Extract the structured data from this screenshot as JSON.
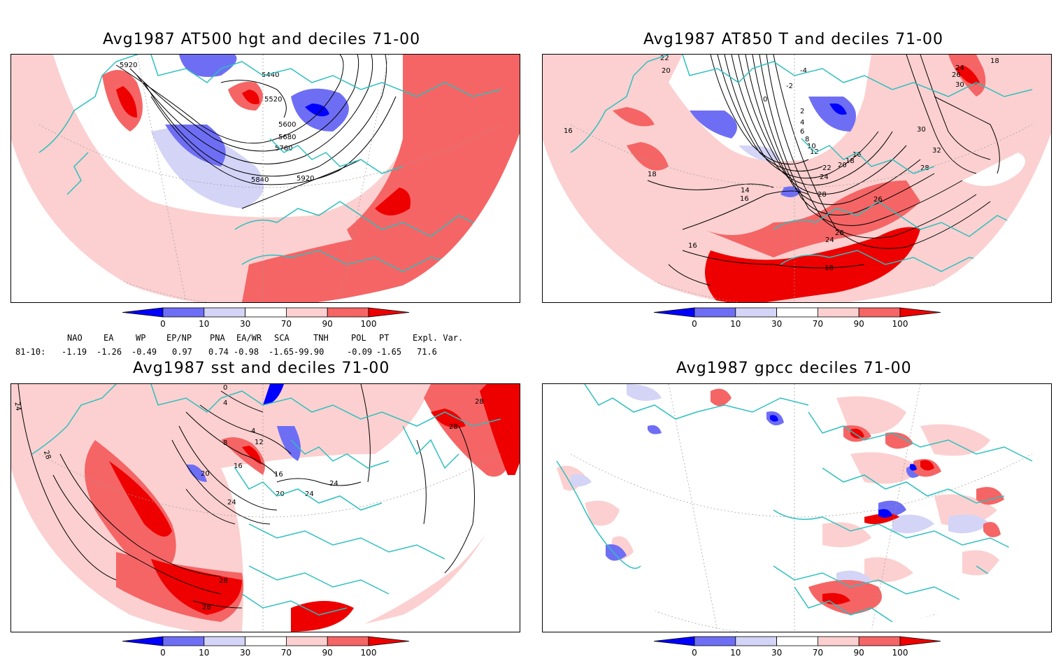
{
  "panels": [
    {
      "id": "p1",
      "title": "Avg1987 AT500 hgt and deciles 71-00",
      "contour_labels": [
        "5920",
        "5440",
        "5520",
        "5600",
        "5680",
        "5760",
        "5840",
        "5920"
      ]
    },
    {
      "id": "p2",
      "title": "Avg1987 AT850 T and deciles 71-00",
      "contour_labels": [
        "22",
        "20",
        "-4",
        "-2",
        "0",
        "2",
        "4",
        "6",
        "8",
        "10",
        "12",
        "14",
        "16",
        "16",
        "18",
        "18",
        "20",
        "22",
        "24",
        "24",
        "26",
        "26",
        "28",
        "28",
        "30",
        "32",
        "16",
        "18",
        "16",
        "18",
        "26",
        "24",
        "30"
      ]
    },
    {
      "id": "p3",
      "title": "Avg1987 sst and deciles 71-00",
      "contour_labels": [
        "24",
        "28",
        "0",
        "4",
        "4",
        "8",
        "12",
        "16",
        "20",
        "24",
        "24",
        "28",
        "28",
        "28",
        "28",
        "24",
        "20",
        "16"
      ]
    },
    {
      "id": "p4",
      "title": "Avg1987 gpcc deciles 71-00",
      "contour_labels": []
    }
  ],
  "colorbar": {
    "ticks": [
      "0",
      "10",
      "30",
      "70",
      "90",
      "100"
    ],
    "colors": [
      "#0000ff",
      "#6e6ef5",
      "#d4d4f7",
      "#ffffff",
      "#fcd0d0",
      "#f56565",
      "#ee0000"
    ]
  },
  "indices": {
    "headers": [
      "NAO",
      "EA",
      "WP",
      "EP/NP",
      "PNA",
      "EA/WR",
      "SCA",
      "TNH",
      "POL",
      "PT",
      "Expl. Var."
    ],
    "row_label": "81-10:",
    "values": [
      "-1.19",
      "-1.26",
      "-0.49",
      "0.97",
      "0.74",
      "-0.98",
      "-1.65",
      "-99.90",
      "-0.09",
      "-1.65",
      "71.6"
    ]
  }
}
